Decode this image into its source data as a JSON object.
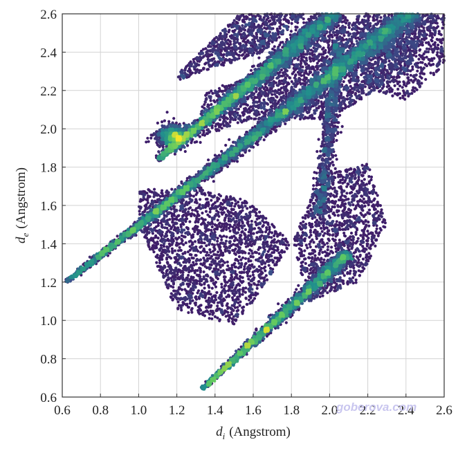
{
  "chart_data": {
    "type": "scatter",
    "title": "",
    "xlabel": {
      "symbol": "d",
      "subscript": "i",
      "unit": "(Angstrom)"
    },
    "ylabel": {
      "symbol": "d",
      "subscript": "e",
      "unit": "(Angstrom)"
    },
    "xlim": [
      0.6,
      2.6
    ],
    "ylim": [
      0.6,
      2.6
    ],
    "xticks": [
      "0.6",
      "0.8",
      "1.0",
      "1.2",
      "1.4",
      "1.6",
      "1.8",
      "2.0",
      "2.2",
      "2.4",
      "2.6"
    ],
    "yticks": [
      "0.6",
      "0.8",
      "1.0",
      "1.2",
      "1.4",
      "1.6",
      "1.8",
      "2.0",
      "2.2",
      "2.4",
      "2.6"
    ],
    "grid": true,
    "colormap": [
      "#440154",
      "#3b528b",
      "#21908c",
      "#5dc863",
      "#fde725"
    ],
    "point_color": "#3d1d6a",
    "series": [
      {
        "kind": "spike",
        "from": [
          0.62,
          1.2
        ],
        "to": [
          2.45,
          2.62
        ],
        "width": 0.045,
        "count": 5200
      },
      {
        "kind": "spike",
        "from": [
          1.1,
          1.84
        ],
        "to": [
          2.05,
          2.62
        ],
        "width": 0.05,
        "count": 3600
      },
      {
        "kind": "spike",
        "from": [
          1.33,
          0.64
        ],
        "to": [
          2.1,
          1.35
        ],
        "width": 0.035,
        "count": 2600
      },
      {
        "kind": "band",
        "from": [
          1.95,
          1.55
        ],
        "to": [
          2.05,
          2.45
        ],
        "width": 0.04,
        "count": 900
      },
      {
        "kind": "region",
        "polygon": [
          [
            1.0,
            1.68
          ],
          [
            1.3,
            1.7
          ],
          [
            1.58,
            1.62
          ],
          [
            1.8,
            1.4
          ],
          [
            1.6,
            1.1
          ],
          [
            1.5,
            0.98
          ],
          [
            1.2,
            1.05
          ],
          [
            1.0,
            1.5
          ]
        ],
        "count": 2100
      },
      {
        "kind": "region",
        "polygon": [
          [
            1.8,
            1.4
          ],
          [
            1.95,
            1.75
          ],
          [
            2.2,
            1.82
          ],
          [
            2.3,
            1.5
          ],
          [
            2.15,
            1.2
          ],
          [
            1.9,
            1.1
          ]
        ],
        "count": 1200
      },
      {
        "kind": "region",
        "polygon": [
          [
            1.3,
            1.95
          ],
          [
            1.6,
            2.05
          ],
          [
            2.0,
            2.05
          ],
          [
            2.4,
            2.3
          ],
          [
            2.58,
            2.62
          ],
          [
            2.2,
            2.62
          ],
          [
            1.7,
            2.3
          ],
          [
            1.35,
            2.2
          ]
        ],
        "count": 2600
      },
      {
        "kind": "region",
        "polygon": [
          [
            1.2,
            2.25
          ],
          [
            1.65,
            2.4
          ],
          [
            1.9,
            2.62
          ],
          [
            1.55,
            2.62
          ],
          [
            1.22,
            2.3
          ]
        ],
        "count": 900
      },
      {
        "kind": "region",
        "polygon": [
          [
            2.15,
            2.45
          ],
          [
            2.45,
            2.62
          ],
          [
            2.62,
            2.62
          ],
          [
            2.62,
            2.35
          ],
          [
            2.4,
            2.15
          ],
          [
            2.2,
            2.2
          ]
        ],
        "count": 700
      },
      {
        "kind": "hotspot",
        "center": [
          1.18,
          1.96
        ],
        "sigma": [
          0.045,
          0.03
        ],
        "count": 700
      }
    ]
  },
  "watermark": "goberova.com"
}
